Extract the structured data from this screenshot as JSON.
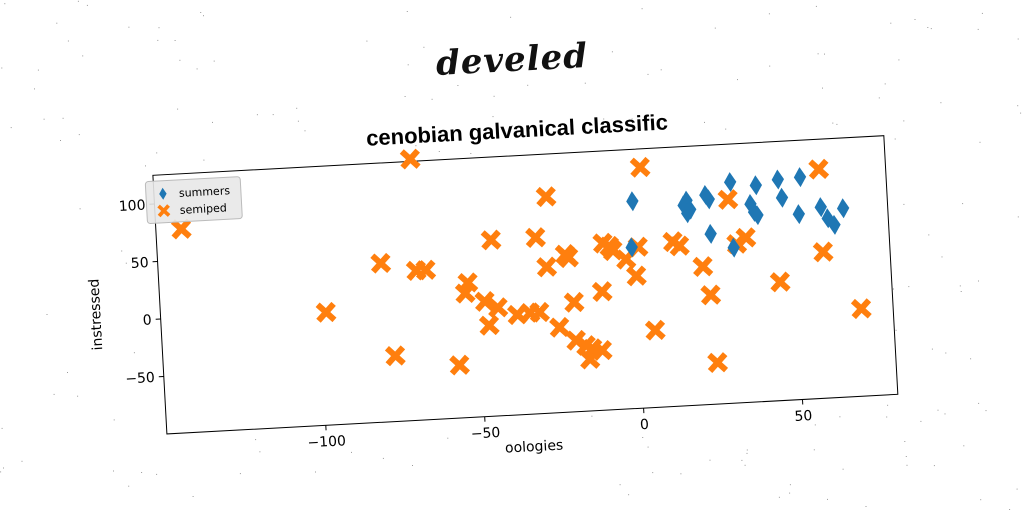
{
  "figure": {
    "suptitle": "develed"
  },
  "chart_data": {
    "type": "scatter",
    "title": "cenobian galvanical classific",
    "xlabel": "oologies",
    "ylabel": "instressed",
    "xlim": [
      -150,
      80
    ],
    "ylim": [
      -100,
      125
    ],
    "xticks": [
      -100,
      -50,
      0,
      50
    ],
    "yticks": [
      -50,
      0,
      50,
      100
    ],
    "legend_placement": "top-left",
    "grid": false,
    "series": [
      {
        "name": "summers",
        "marker": "diamond",
        "color": "#1f77b4",
        "points": [
          [
            0,
            80
          ],
          [
            -1,
            40
          ],
          [
            16,
            74
          ],
          [
            17,
            78
          ],
          [
            18,
            70
          ],
          [
            17,
            67
          ],
          [
            23,
            82
          ],
          [
            24,
            78
          ],
          [
            24,
            48
          ],
          [
            31,
            35
          ],
          [
            31,
            92
          ],
          [
            37,
            72
          ],
          [
            38,
            65
          ],
          [
            39,
            88
          ],
          [
            39,
            62
          ],
          [
            46,
            92
          ],
          [
            47,
            76
          ],
          [
            53,
            93
          ],
          [
            52,
            61
          ],
          [
            59,
            66
          ],
          [
            61,
            56
          ],
          [
            63,
            50
          ],
          [
            66,
            64
          ]
        ]
      },
      {
        "name": "semiped",
        "marker": "x",
        "color": "#ff7f0e",
        "points": [
          [
            -142,
            77
          ],
          [
            -98,
            -2
          ],
          [
            -80,
            38
          ],
          [
            -77,
            -43
          ],
          [
            -69,
            127
          ],
          [
            -69,
            30
          ],
          [
            -66,
            30
          ],
          [
            -57,
            -54
          ],
          [
            -54,
            8
          ],
          [
            -53,
            17
          ],
          [
            -48,
            0
          ],
          [
            -47,
            -21
          ],
          [
            -45,
            53
          ],
          [
            -44,
            -6
          ],
          [
            -38,
            -13
          ],
          [
            -34,
            -12
          ],
          [
            -31,
            -12
          ],
          [
            -31,
            53
          ],
          [
            -28,
            27
          ],
          [
            -27,
            88
          ],
          [
            -25,
            -26
          ],
          [
            -22,
            37
          ],
          [
            -21,
            34
          ],
          [
            -20,
            -5
          ],
          [
            -20,
            -38
          ],
          [
            -17,
            -43
          ],
          [
            -16,
            -55
          ],
          [
            -15,
            -46
          ],
          [
            -12,
            -48
          ],
          [
            -11,
            3
          ],
          [
            -10,
            45
          ],
          [
            -8,
            42
          ],
          [
            -7,
            38
          ],
          [
            -3,
            30
          ],
          [
            0,
            15
          ],
          [
            1,
            40
          ],
          [
            3,
            109
          ],
          [
            5,
            -33
          ],
          [
            12,
            43
          ],
          [
            14,
            39
          ],
          [
            21,
            20
          ],
          [
            23,
            -5
          ],
          [
            24,
            -64
          ],
          [
            30,
            77
          ],
          [
            32,
            38
          ],
          [
            35,
            43
          ],
          [
            45,
            3
          ],
          [
            59,
            99
          ],
          [
            59,
            27
          ],
          [
            70,
            -24
          ]
        ]
      }
    ]
  }
}
